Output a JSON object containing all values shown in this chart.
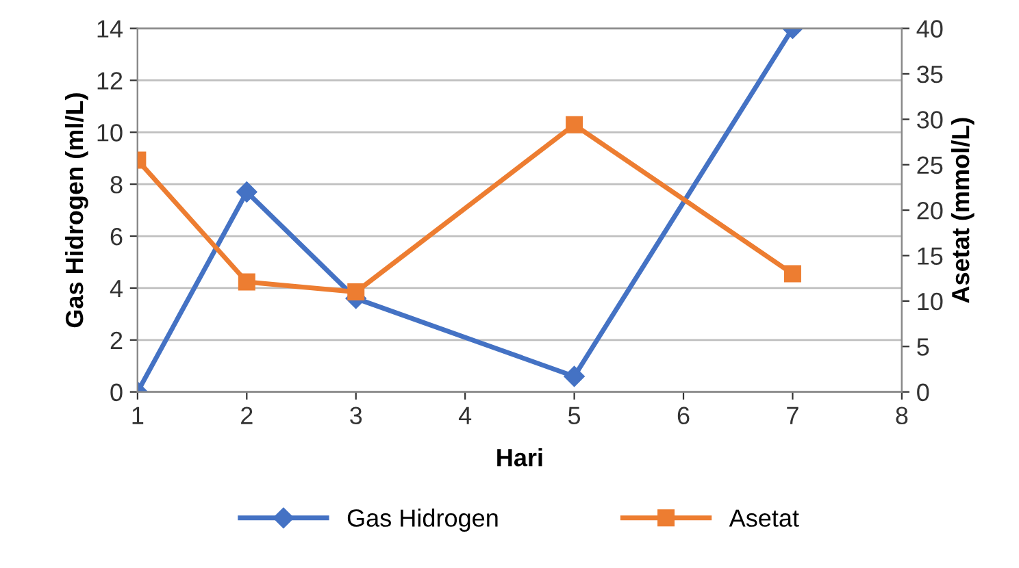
{
  "chart_data": {
    "type": "line",
    "xlabel": "Hari",
    "ylabel": "Gas Hidrogen (ml/L)",
    "y2label": "Asetat (mmol/L)",
    "series": [
      {
        "name": "Gas Hidrogen",
        "color": "#4472c4",
        "marker": "diamond",
        "x": [
          1,
          2,
          3,
          5,
          7
        ],
        "values": [
          0,
          7.7,
          3.6,
          0.6,
          14
        ]
      },
      {
        "name": "Asetat",
        "color": "#ed7d31",
        "marker": "square",
        "axis": "y2",
        "x": [
          1,
          2,
          3,
          5,
          7
        ],
        "values": [
          25.5,
          12.1,
          11.0,
          29.4,
          13.0
        ]
      }
    ],
    "xlim": [
      1,
      8
    ],
    "xticks": [
      1,
      2,
      3,
      4,
      5,
      6,
      7,
      8
    ],
    "ylim": [
      0,
      14
    ],
    "yticks": [
      0,
      2,
      4,
      6,
      8,
      10,
      12,
      14
    ],
    "y2lim": [
      0,
      40
    ],
    "y2ticks": [
      0,
      5,
      10,
      15,
      20,
      25,
      30,
      35,
      40
    ],
    "grid": "y",
    "legend": "bottom"
  }
}
